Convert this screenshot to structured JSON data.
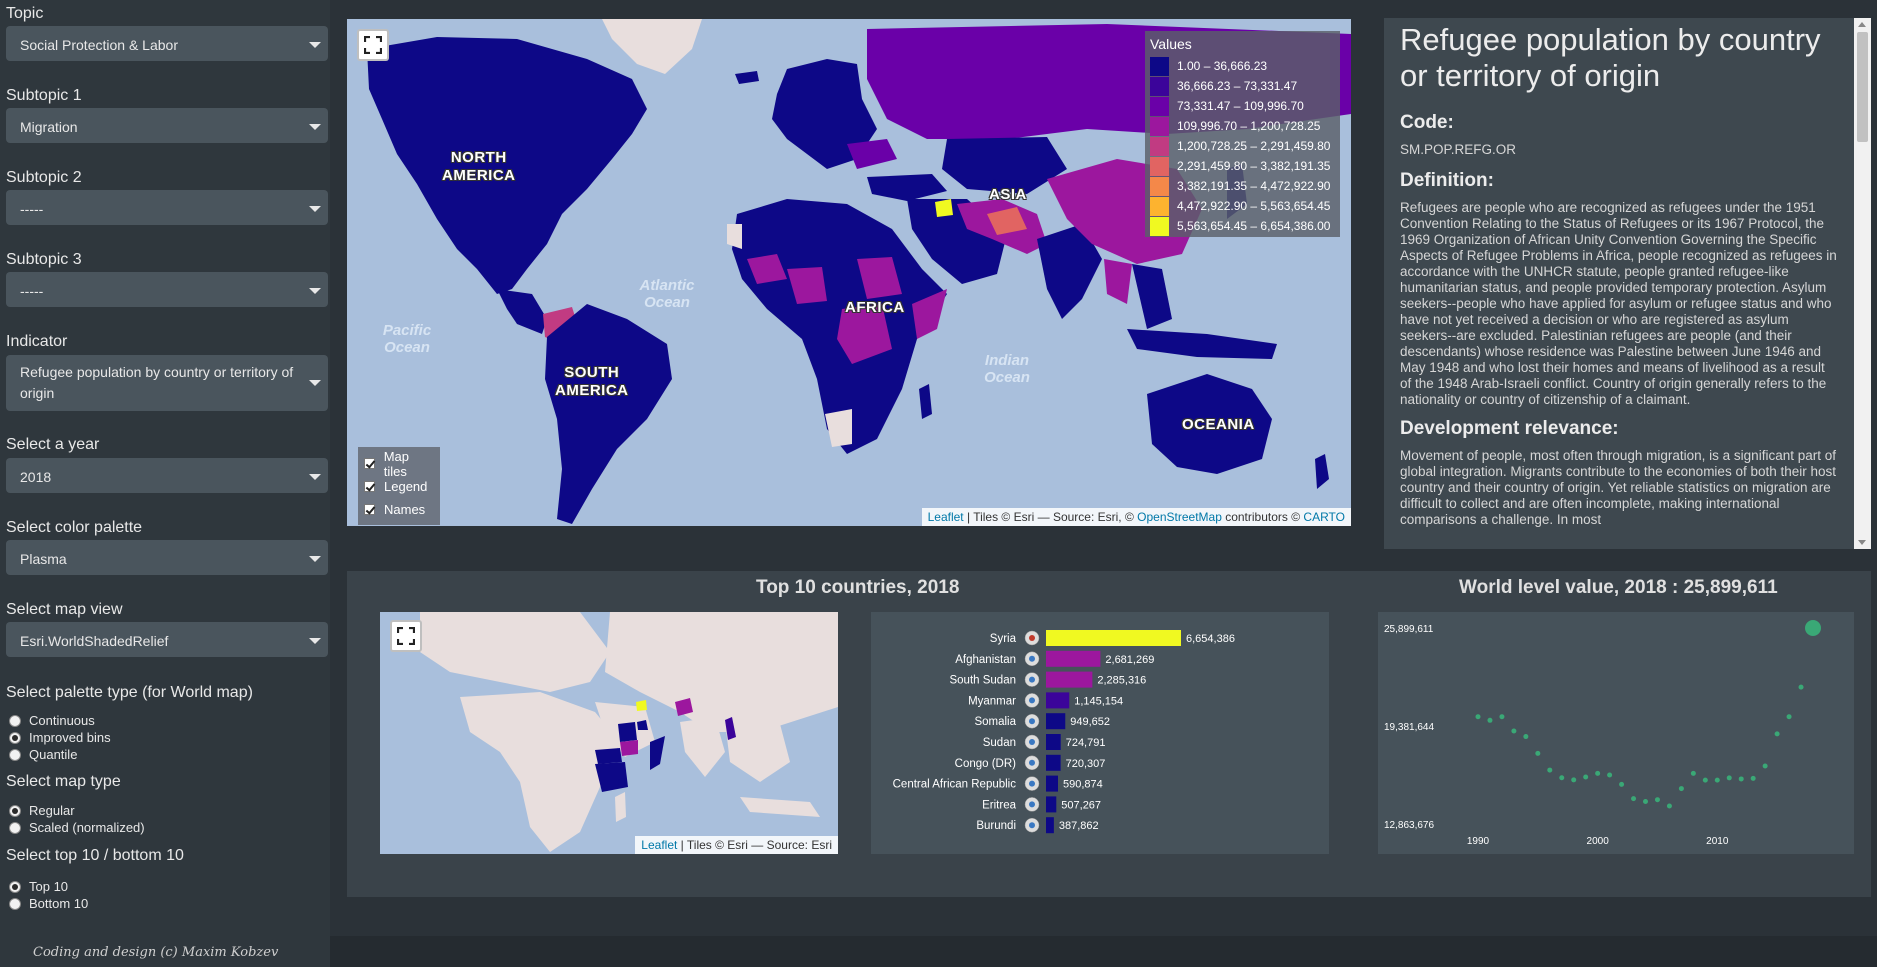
{
  "sidebar": {
    "topic": {
      "label": "Topic",
      "value": "Social Protection & Labor"
    },
    "subtopic1": {
      "label": "Subtopic 1",
      "value": "Migration"
    },
    "subtopic2": {
      "label": "Subtopic 2",
      "value": "-----"
    },
    "subtopic3": {
      "label": "Subtopic 3",
      "value": "-----"
    },
    "indicator": {
      "label": "Indicator",
      "value": "Refugee population by country or territory of origin"
    },
    "year": {
      "label": "Select a year",
      "value": "2018"
    },
    "palette": {
      "label": "Select color palette",
      "value": "Plasma"
    },
    "map_view": {
      "label": "Select map view",
      "value": "Esri.WorldShadedRelief"
    },
    "palette_type": {
      "label": "Select palette type (for World map)",
      "options": [
        "Continuous",
        "Improved bins",
        "Quantile"
      ],
      "selected": "Improved bins"
    },
    "map_type": {
      "label": "Select map type",
      "options": [
        "Regular",
        "Scaled (normalized)"
      ],
      "selected": "Regular"
    },
    "top_bottom": {
      "label": "Select top 10 / bottom 10",
      "options": [
        "Top 10",
        "Bottom 10"
      ],
      "selected": "Top 10"
    },
    "credit": "Coding and design (c) Maxim Kobzev"
  },
  "world_map": {
    "legend_title": "Values",
    "legend": [
      {
        "range": "1.00 – 36,666.23",
        "color": "#0d0887"
      },
      {
        "range": "36,666.23 – 73,331.47",
        "color": "#3b049a"
      },
      {
        "range": "73,331.47 – 109,996.70",
        "color": "#6a00a8"
      },
      {
        "range": "109,996.70 – 1,200,728.25",
        "color": "#9c179e"
      },
      {
        "range": "1,200,728.25 – 2,291,459.80",
        "color": "#c13b82"
      },
      {
        "range": "2,291,459.80 – 3,382,191.35",
        "color": "#e16462"
      },
      {
        "range": "3,382,191.35 – 4,472,922.90",
        "color": "#f48849"
      },
      {
        "range": "4,472,922.90 – 5,563,654.45",
        "color": "#fdb32f"
      },
      {
        "range": "5,563,654.45 – 6,654,386.00",
        "color": "#f0f921"
      }
    ],
    "layers": [
      "Map tiles",
      "Legend",
      "Names"
    ],
    "continents": [
      "NORTH AMERICA",
      "SOUTH AMERICA",
      "AFRICA",
      "ASIA",
      "OCEANIA"
    ],
    "oceans": [
      "Atlantic Ocean",
      "Pacific Ocean",
      "Indian Ocean"
    ],
    "attribution": {
      "leaflet": "Leaflet",
      "text1": " | Tiles © Esri — Source: Esri, © ",
      "osm": "OpenStreetMap",
      "text2": " contributors © ",
      "carto": "CARTO"
    }
  },
  "definition": {
    "title": "Refugee population by country or territory of origin",
    "code_heading": "Code:",
    "code": "SM.POP.REFG.OR",
    "definition_heading": "Definition:",
    "definition": "Refugees are people who are recognized as refugees under the 1951 Convention Relating to the Status of Refugees or its 1967 Protocol, the 1969 Organization of African Unity Convention Governing the Specific Aspects of Refugee Problems in Africa, people recognized as refugees in accordance with the UNHCR statute, people granted refugee-like humanitarian status, and people provided temporary protection. Asylum seekers--people who have applied for asylum or refugee status and who have not yet received a decision or who are registered as asylum seekers--are excluded. Palestinian refugees are people (and their descendants) whose residence was Palestine between June 1946 and May 1948 and who lost their homes and means of livelihood as a result of the 1948 Arab-Israeli conflict. Country of origin generally refers to the nationality or country of citizenship of a claimant.",
    "relevance_heading": "Development relevance:",
    "relevance": "Movement of people, most often through migration, is a significant part of global integration. Migrants contribute to the economies of both their host country and their country of origin. Yet reliable statistics on migration are difficult to collect and are often incomplete, making international comparisons a challenge. In most"
  },
  "top10": {
    "title": "Top 10 countries, 2018",
    "mini_attribution": {
      "leaflet": "Leaflet",
      "text": " | Tiles © Esri — Source: Esri"
    }
  },
  "world_level": {
    "title": "World level value, 2018 : 25,899,611"
  },
  "chart_data": [
    {
      "type": "bar",
      "categories": [
        "Syria",
        "Afghanistan",
        "South Sudan",
        "Myanmar",
        "Somalia",
        "Sudan",
        "Congo (DR)",
        "Central African Republic",
        "Eritrea",
        "Burundi"
      ],
      "values": [
        6654386,
        2681269,
        2285316,
        1145154,
        949652,
        724791,
        720307,
        590874,
        507267,
        387862
      ],
      "labels": [
        "6,654,386",
        "2,681,269",
        "2,285,316",
        "1,145,154",
        "949,652",
        "724,791",
        "720,307",
        "590,874",
        "507,267",
        "387,862"
      ],
      "colors": [
        "#f0f921",
        "#9c179e",
        "#9c179e",
        "#3b049a",
        "#0d0887",
        "#0d0887",
        "#0d0887",
        "#0d0887",
        "#0d0887",
        "#0d0887"
      ]
    },
    {
      "type": "scatter",
      "x": [
        1990,
        1991,
        1992,
        1993,
        1994,
        1995,
        1996,
        1997,
        1998,
        1999,
        2000,
        2001,
        2002,
        2003,
        2004,
        2005,
        2006,
        2007,
        2008,
        2009,
        2010,
        2011,
        2012,
        2013,
        2014,
        2015,
        2016,
        2017,
        2018
      ],
      "y": [
        20000000,
        19760000,
        20000000,
        19050000,
        18680000,
        17560000,
        16450000,
        15940000,
        15800000,
        15990000,
        16230000,
        16120000,
        15500000,
        14550000,
        14360000,
        14480000,
        14060000,
        15220000,
        16230000,
        15780000,
        15780000,
        15930000,
        15860000,
        15900000,
        16720000,
        18860000,
        20000000,
        21970000,
        25899611
      ],
      "y_ticks": [
        "25,899,611",
        "19,381,644",
        "12,863,676"
      ],
      "x_ticks": [
        "1990",
        "2000",
        "2010"
      ],
      "point_color": "#3aa876"
    }
  ]
}
